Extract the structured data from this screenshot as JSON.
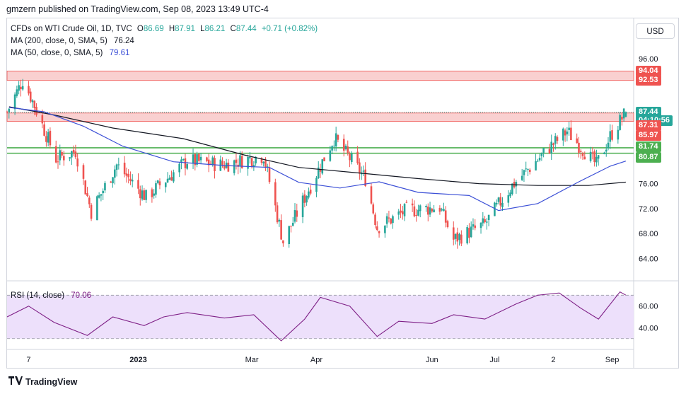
{
  "publisher": "gmzern published on TradingView.com, Sep 08, 2023 13:49 UTC-4",
  "currency_button": "USD",
  "footer_logo_text": "TradingView",
  "legend": {
    "symbol": "CFDs on WTI Crude Oil, 1D, TVC",
    "o_label": "O",
    "o_value": "86.69",
    "h_label": "H",
    "h_value": "87.91",
    "l_label": "L",
    "l_value": "86.21",
    "c_label": "C",
    "c_value": "87.44",
    "change": "+0.71 (+0.82%)",
    "ma200_label": "MA (200, close, 0, SMA, 5)",
    "ma200_value": "76.24",
    "ma50_label": "MA (50, close, 0, SMA, 5)",
    "ma50_value": "79.61",
    "rsi_label": "RSI (14, close)",
    "rsi_value": "70.06"
  },
  "colors": {
    "up": "#26a69a",
    "down": "#ef5350",
    "ma200": "#131722",
    "ma50": "#3b4fd6",
    "rsi": "#7e1f86",
    "rsi_band": "#ede0fb",
    "resistance_zone": "#f9d0d0",
    "support_line": "#4caf50",
    "last_price": "#26a69a"
  },
  "price_tags": [
    {
      "label": "94.04",
      "price": 94.04,
      "color": "#ef5350"
    },
    {
      "label": "92.53",
      "price": 92.53,
      "color": "#ef5350"
    },
    {
      "label": "87.44",
      "price": 87.44,
      "color": "#26a69a"
    },
    {
      "label": "04:10:56",
      "price": 86.1,
      "color": "#26a69a"
    },
    {
      "label": "87.31",
      "price": 85.3,
      "color": "#ef5350"
    },
    {
      "label": "85.97",
      "price": 83.7,
      "color": "#ef5350"
    },
    {
      "label": "81.74",
      "price": 81.85,
      "color": "#4caf50"
    },
    {
      "label": "80.87",
      "price": 80.2,
      "color": "#4caf50"
    }
  ],
  "chart_data": {
    "type": "candlestick",
    "title": "CFDs on WTI Crude Oil, 1D, TVC",
    "price_axis": {
      "ticks": [
        96,
        92,
        88,
        84,
        80,
        76,
        72,
        68,
        64
      ],
      "tick_labels": [
        "96.00",
        "",
        "",
        "",
        "",
        "76.00",
        "72.00",
        "68.00",
        "64.00"
      ],
      "range": [
        61.0,
        98.5
      ]
    },
    "time_axis": {
      "labels": [
        "7",
        "2023",
        "Mar",
        "Apr",
        "Jun",
        "Jul",
        "2",
        "Sep"
      ],
      "label_dates": [
        "2022-11-07",
        "2023-01-02",
        "2023-03-01",
        "2023-04-03",
        "2023-06-01",
        "2023-07-03",
        "2023-08-02",
        "2023-09-01"
      ],
      "range": [
        "2022-10-27",
        "2023-09-12"
      ]
    },
    "candles_shown": "daily OHLC, Oct 2022 - Sep 8 2023",
    "last_candle": {
      "date": "2023-09-08",
      "open": 86.69,
      "high": 87.91,
      "low": 86.21,
      "close": 87.44
    },
    "series": [
      {
        "name": "MA (200, close, 0, SMA, 5)",
        "last": 76.24,
        "points": [
          [
            "2022-10-28",
            88.3
          ],
          [
            "2022-11-20",
            87.0
          ],
          [
            "2022-12-20",
            84.9
          ],
          [
            "2023-01-25",
            83.2
          ],
          [
            "2023-02-25",
            80.6
          ],
          [
            "2023-03-25",
            78.6
          ],
          [
            "2023-04-25",
            77.7
          ],
          [
            "2023-05-25",
            76.8
          ],
          [
            "2023-06-25",
            76.0
          ],
          [
            "2023-07-25",
            75.7
          ],
          [
            "2023-08-20",
            75.7
          ],
          [
            "2023-09-08",
            76.24
          ]
        ]
      },
      {
        "name": "MA (50, close, 0, SMA, 5)",
        "last": 79.61,
        "points": [
          [
            "2022-10-28",
            88.2
          ],
          [
            "2022-11-15",
            87.5
          ],
          [
            "2022-12-05",
            85.2
          ],
          [
            "2022-12-25",
            82.0
          ],
          [
            "2023-01-20",
            79.5
          ],
          [
            "2023-02-15",
            78.9
          ],
          [
            "2023-03-10",
            78.6
          ],
          [
            "2023-03-25",
            76.2
          ],
          [
            "2023-04-15",
            75.3
          ],
          [
            "2023-05-05",
            76.3
          ],
          [
            "2023-05-25",
            74.6
          ],
          [
            "2023-06-20",
            74.1
          ],
          [
            "2023-07-05",
            71.7
          ],
          [
            "2023-07-25",
            72.8
          ],
          [
            "2023-08-15",
            76.3
          ],
          [
            "2023-08-31",
            78.8
          ],
          [
            "2023-09-08",
            79.61
          ]
        ]
      }
    ],
    "zones": [
      {
        "from": 92.53,
        "to": 94.04,
        "type": "resistance"
      },
      {
        "from": 85.97,
        "to": 87.31,
        "type": "resistance"
      }
    ],
    "lines": [
      {
        "price": 81.74,
        "type": "support"
      },
      {
        "price": 80.87,
        "type": "support"
      }
    ],
    "rsi": {
      "name": "RSI (14, close)",
      "last": 70.06,
      "ticks": [
        60,
        40
      ],
      "tick_labels": [
        "60.00",
        "40.00"
      ],
      "band": [
        30,
        70
      ],
      "range": [
        24,
        78
      ],
      "points": [
        [
          "2022-10-27",
          50
        ],
        [
          "2022-11-07",
          60
        ],
        [
          "2022-11-20",
          45
        ],
        [
          "2022-12-07",
          33
        ],
        [
          "2022-12-20",
          50
        ],
        [
          "2023-01-05",
          42
        ],
        [
          "2023-01-15",
          50
        ],
        [
          "2023-01-27",
          54
        ],
        [
          "2023-02-15",
          49
        ],
        [
          "2023-03-02",
          52
        ],
        [
          "2023-03-16",
          28
        ],
        [
          "2023-03-28",
          48
        ],
        [
          "2023-04-05",
          68
        ],
        [
          "2023-04-20",
          60
        ],
        [
          "2023-05-04",
          32
        ],
        [
          "2023-05-15",
          46
        ],
        [
          "2023-06-01",
          44
        ],
        [
          "2023-06-12",
          52
        ],
        [
          "2023-06-28",
          48
        ],
        [
          "2023-07-14",
          62
        ],
        [
          "2023-07-25",
          70
        ],
        [
          "2023-08-05",
          72
        ],
        [
          "2023-08-16",
          58
        ],
        [
          "2023-08-25",
          48
        ],
        [
          "2023-09-05",
          73
        ],
        [
          "2023-09-08",
          70.06
        ]
      ]
    }
  }
}
